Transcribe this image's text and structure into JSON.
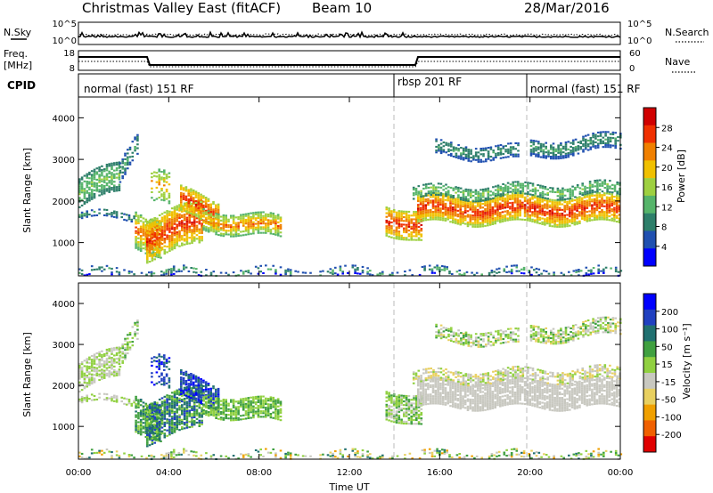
{
  "header": {
    "radar": "Christmas Valley East (fitACF)",
    "beam": "Beam 10",
    "date": "28/Mar/2016"
  },
  "strips": {
    "nsky_label": "N.Sky",
    "nsearch_label": "N.Search",
    "noise_ticks": [
      "10^5",
      "10^0"
    ],
    "freq_label": "Freq.",
    "freq_unit": "[MHz]",
    "freq_ticks": [
      "18",
      "8"
    ],
    "nave_label": "Nave",
    "nave_ticks": [
      "60",
      "0"
    ],
    "cpid_label": "CPID"
  },
  "cpid_segments": [
    {
      "label": "normal (fast) 151 RF",
      "start_h": 0,
      "end_h": 14
    },
    {
      "label": "rbsp 201 RF",
      "start_h": 14,
      "end_h": 20
    },
    {
      "label": "normal (fast) 151 RF",
      "start_h": 20,
      "end_h": 24
    }
  ],
  "colors": {
    "power_scale": [
      "#0000ff",
      "#2050b0",
      "#2e7f6a",
      "#56b46a",
      "#9ed040",
      "#f0c000",
      "#f08000",
      "#f03000",
      "#d00000"
    ],
    "velocity_scale": [
      "#e00000",
      "#f06000",
      "#f0a000",
      "#e8d060",
      "#c8c8c0",
      "#90d040",
      "#40a040",
      "#207070",
      "#2040c0",
      "#0000ff"
    ]
  },
  "chart_data": [
    {
      "type": "heatmap",
      "name": "power-panel",
      "xlabel": "",
      "ylabel": "Slant Range [km]",
      "yticks": [
        1000,
        2000,
        3000,
        4000
      ],
      "ylim": [
        200,
        4500
      ],
      "xlim_hours": [
        0,
        24
      ],
      "colorbar_label": "Power [dB]",
      "colorbar_ticks": [
        "28",
        "24",
        "20",
        "16",
        "12",
        "8",
        "4"
      ],
      "colorbar_range": [
        0,
        32
      ]
    },
    {
      "type": "heatmap",
      "name": "velocity-panel",
      "xlabel": "Time UT",
      "ylabel": "Slant Range [km]",
      "yticks": [
        1000,
        2000,
        3000,
        4000
      ],
      "ylim": [
        200,
        4500
      ],
      "xlim_hours": [
        0,
        24
      ],
      "xticks": [
        "00:00",
        "04:00",
        "08:00",
        "12:00",
        "16:00",
        "20:00",
        "00:00"
      ],
      "colorbar_label": "Velocity [m s⁻¹]",
      "colorbar_ticks": [
        "200",
        "100",
        "50",
        "15",
        "-15",
        "-50",
        "-100",
        "-200"
      ]
    }
  ]
}
